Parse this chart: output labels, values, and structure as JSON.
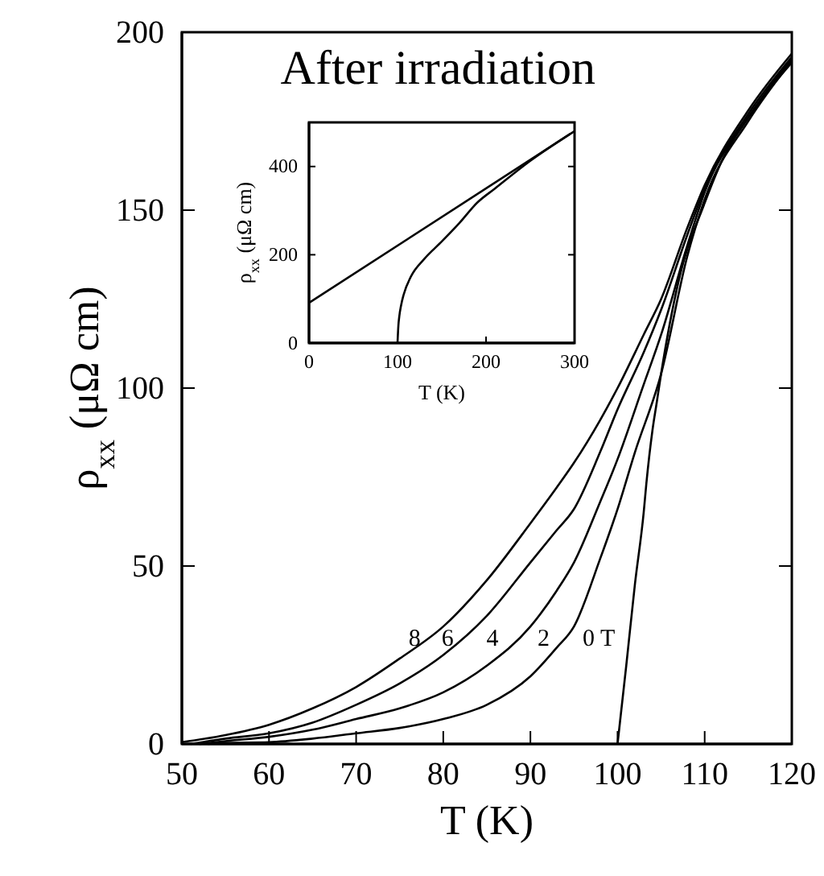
{
  "chart_data": [
    {
      "type": "line",
      "title": "After irradiation",
      "xlabel": "T (K)",
      "ylabel": "ρ$_{xx}$ (μΩ cm)",
      "xlim": [
        50,
        120
      ],
      "ylim": [
        0,
        200
      ],
      "xticks": [
        50,
        60,
        70,
        80,
        90,
        100,
        110,
        120
      ],
      "yticks": [
        0,
        50,
        100,
        150,
        200
      ],
      "marker": "none",
      "line_style": "solid",
      "series": [
        {
          "name": "8",
          "color": "#000000",
          "x": [
            50,
            55,
            60,
            65,
            70,
            75,
            80,
            85,
            90,
            93,
            95,
            98,
            100,
            103,
            105,
            108,
            110,
            115,
            120
          ],
          "values": [
            0.5,
            2.5,
            5.4,
            10,
            16,
            24,
            33,
            46,
            62,
            72,
            79,
            91,
            100,
            115,
            125,
            145,
            157,
            178,
            194
          ]
        },
        {
          "name": "6",
          "color": "#000000",
          "x": [
            51,
            55,
            60,
            65,
            70,
            75,
            80,
            85,
            90,
            93,
            95,
            98,
            100,
            103,
            105,
            108,
            110,
            115,
            120
          ],
          "values": [
            0,
            1.5,
            3,
            6,
            11,
            17,
            25,
            36,
            51,
            60,
            66,
            82,
            94,
            110,
            122,
            143,
            156,
            177,
            193
          ]
        },
        {
          "name": "4",
          "color": "#000000",
          "x": [
            52,
            55,
            60,
            65,
            70,
            75,
            80,
            85,
            90,
            93,
            95,
            98,
            100,
            103,
            105,
            108,
            110,
            115,
            120
          ],
          "values": [
            0,
            0.8,
            2,
            4,
            7,
            10,
            14.5,
            22,
            33,
            43,
            51,
            68,
            80,
            101,
            115,
            140,
            155,
            176,
            192.5
          ]
        },
        {
          "name": "2",
          "color": "#000000",
          "x": [
            53,
            55,
            60,
            65,
            70,
            75,
            80,
            85,
            90,
            93,
            95,
            98,
            100,
            102,
            105,
            108,
            110,
            115,
            120
          ],
          "values": [
            0,
            0.3,
            0.5,
            1.5,
            3,
            4.5,
            7,
            11,
            19,
            27,
            33,
            52,
            66,
            82,
            104,
            137,
            153,
            175,
            192
          ]
        },
        {
          "name": "0 T",
          "color": "#000000",
          "x": [
            100,
            101,
            102,
            103,
            103.3,
            104,
            104.5,
            105,
            107,
            110,
            112,
            115,
            120
          ],
          "values": [
            0,
            22,
            45,
            65,
            73,
            88,
            96,
            104,
            130,
            152,
            164,
            176,
            191.5
          ]
        }
      ]
    },
    {
      "type": "line",
      "xlabel": "T (K)",
      "ylabel": "ρ$_{xx}$ (μΩ cm)",
      "xlim": [
        0,
        300
      ],
      "ylim": [
        0,
        500
      ],
      "xticks": [
        0,
        100,
        200,
        300
      ],
      "yticks": [
        0,
        200,
        400
      ],
      "marker": "none",
      "line_style": "solid",
      "series": [
        {
          "color": "#000000",
          "x": [
            0,
            300
          ],
          "values": [
            91,
            480
          ]
        },
        {
          "color": "#000000",
          "x": [
            100,
            101,
            102,
            104,
            107,
            115,
            130,
            150,
            170,
            190,
            210,
            250,
            295
          ],
          "values": [
            0,
            40,
            60,
            85,
            110,
            150,
            190,
            230,
            272,
            318,
            350,
            413,
            474
          ]
        }
      ]
    }
  ]
}
